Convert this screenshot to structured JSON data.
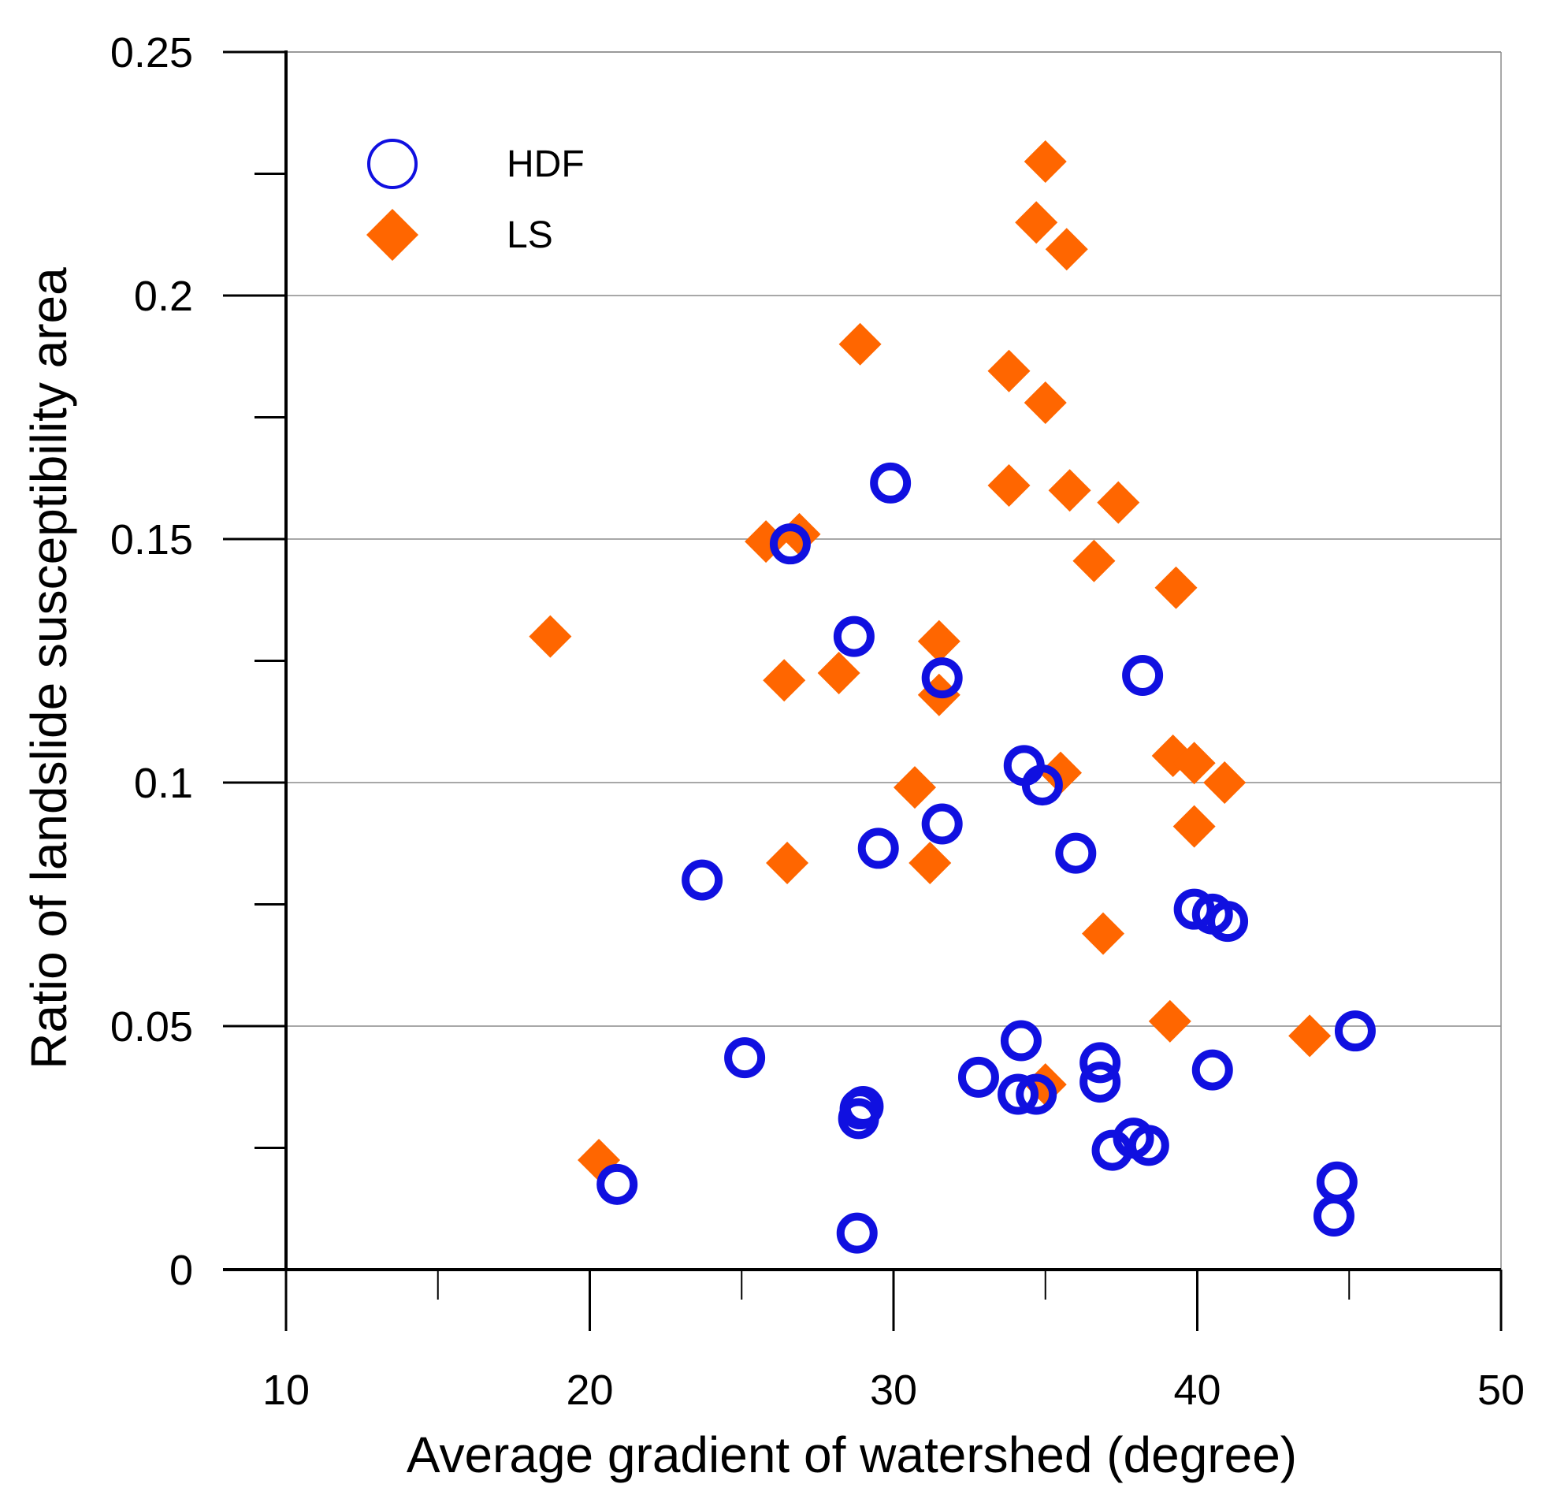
{
  "chart_data": {
    "type": "scatter",
    "title": "",
    "xlabel": "Average gradient of watershed (degree)",
    "ylabel": "Ratio of landslide susceptibility area",
    "xlim": [
      10,
      50
    ],
    "ylim": [
      0,
      0.25
    ],
    "x_ticks": [
      {
        "value": 10,
        "label": "10"
      },
      {
        "value": 20,
        "label": "20"
      },
      {
        "value": 30,
        "label": "30"
      },
      {
        "value": 40,
        "label": "40"
      },
      {
        "value": 50,
        "label": "50"
      }
    ],
    "x_minor_ticks": [
      15,
      25,
      35,
      45
    ],
    "y_ticks": [
      {
        "value": 0,
        "label": "0"
      },
      {
        "value": 0.05,
        "label": "0.05"
      },
      {
        "value": 0.1,
        "label": "0.1"
      },
      {
        "value": 0.15,
        "label": "0.15"
      },
      {
        "value": 0.2,
        "label": "0.2"
      },
      {
        "value": 0.25,
        "label": "0.25"
      }
    ],
    "y_minor_ticks": [
      0.025,
      0.075,
      0.125,
      0.175,
      0.225
    ],
    "grid": {
      "horizontal": true,
      "vertical": false
    },
    "legend": {
      "position": "top-left"
    },
    "series": [
      {
        "name": "HDF",
        "marker": "open-circle",
        "color": "#1010e0",
        "points": [
          {
            "x": 20.9,
            "y": 0.0175
          },
          {
            "x": 23.7,
            "y": 0.08
          },
          {
            "x": 25.1,
            "y": 0.0435
          },
          {
            "x": 26.6,
            "y": 0.149
          },
          {
            "x": 28.7,
            "y": 0.13
          },
          {
            "x": 28.8,
            "y": 0.0075
          },
          {
            "x": 28.9,
            "y": 0.033
          },
          {
            "x": 29.0,
            "y": 0.0335
          },
          {
            "x": 28.85,
            "y": 0.031
          },
          {
            "x": 29.5,
            "y": 0.0865
          },
          {
            "x": 29.9,
            "y": 0.1615
          },
          {
            "x": 31.6,
            "y": 0.1215
          },
          {
            "x": 31.6,
            "y": 0.0915
          },
          {
            "x": 32.8,
            "y": 0.0395
          },
          {
            "x": 34.2,
            "y": 0.047
          },
          {
            "x": 34.3,
            "y": 0.1035
          },
          {
            "x": 34.1,
            "y": 0.036
          },
          {
            "x": 34.7,
            "y": 0.036
          },
          {
            "x": 34.9,
            "y": 0.0995
          },
          {
            "x": 36.0,
            "y": 0.0855
          },
          {
            "x": 36.8,
            "y": 0.0425
          },
          {
            "x": 36.8,
            "y": 0.0385
          },
          {
            "x": 37.2,
            "y": 0.0245
          },
          {
            "x": 37.9,
            "y": 0.027
          },
          {
            "x": 38.2,
            "y": 0.122
          },
          {
            "x": 38.4,
            "y": 0.0255
          },
          {
            "x": 39.9,
            "y": 0.074
          },
          {
            "x": 40.5,
            "y": 0.073
          },
          {
            "x": 41.0,
            "y": 0.0715
          },
          {
            "x": 40.5,
            "y": 0.041
          },
          {
            "x": 44.5,
            "y": 0.011
          },
          {
            "x": 44.6,
            "y": 0.018
          },
          {
            "x": 45.2,
            "y": 0.049
          }
        ]
      },
      {
        "name": "LS",
        "marker": "filled-diamond",
        "color": "#ff6600",
        "points": [
          {
            "x": 18.7,
            "y": 0.13
          },
          {
            "x": 20.3,
            "y": 0.0225
          },
          {
            "x": 25.8,
            "y": 0.1495
          },
          {
            "x": 26.9,
            "y": 0.151
          },
          {
            "x": 26.4,
            "y": 0.121
          },
          {
            "x": 26.5,
            "y": 0.0835
          },
          {
            "x": 28.2,
            "y": 0.1225
          },
          {
            "x": 28.9,
            "y": 0.19
          },
          {
            "x": 30.7,
            "y": 0.099
          },
          {
            "x": 31.2,
            "y": 0.0835
          },
          {
            "x": 31.5,
            "y": 0.129
          },
          {
            "x": 31.5,
            "y": 0.118
          },
          {
            "x": 33.8,
            "y": 0.1845
          },
          {
            "x": 33.8,
            "y": 0.161
          },
          {
            "x": 34.7,
            "y": 0.215
          },
          {
            "x": 35.0,
            "y": 0.2275
          },
          {
            "x": 35.0,
            "y": 0.178
          },
          {
            "x": 35.7,
            "y": 0.2095
          },
          {
            "x": 35.8,
            "y": 0.16
          },
          {
            "x": 35.5,
            "y": 0.102
          },
          {
            "x": 35.0,
            "y": 0.038
          },
          {
            "x": 36.6,
            "y": 0.1455
          },
          {
            "x": 36.9,
            "y": 0.069
          },
          {
            "x": 37.4,
            "y": 0.1575
          },
          {
            "x": 39.1,
            "y": 0.051
          },
          {
            "x": 39.3,
            "y": 0.14
          },
          {
            "x": 39.2,
            "y": 0.1055
          },
          {
            "x": 39.9,
            "y": 0.104
          },
          {
            "x": 39.9,
            "y": 0.091
          },
          {
            "x": 40.9,
            "y": 0.1
          },
          {
            "x": 43.7,
            "y": 0.048
          }
        ]
      }
    ]
  }
}
